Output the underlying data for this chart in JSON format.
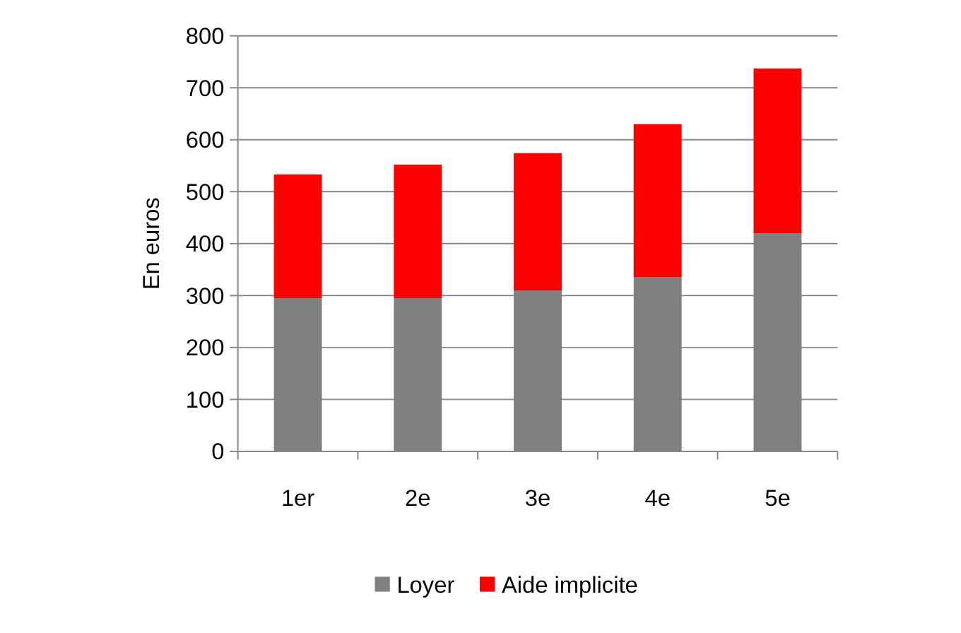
{
  "chart_data": {
    "type": "bar",
    "stacked": true,
    "ylabel": "En euros",
    "categories": [
      "1er",
      "2e",
      "3e",
      "4e",
      "5e"
    ],
    "series": [
      {
        "name": "Loyer",
        "color": "#808080",
        "values": [
          295,
          295,
          310,
          335,
          420
        ]
      },
      {
        "name": "Aide implicite",
        "color": "#ff0000",
        "values": [
          238,
          257,
          264,
          295,
          317
        ]
      }
    ],
    "ylim": [
      0,
      800
    ],
    "yticks": [
      0,
      100,
      200,
      300,
      400,
      500,
      600,
      700,
      800
    ],
    "grid": "y",
    "legend": "bottom"
  }
}
